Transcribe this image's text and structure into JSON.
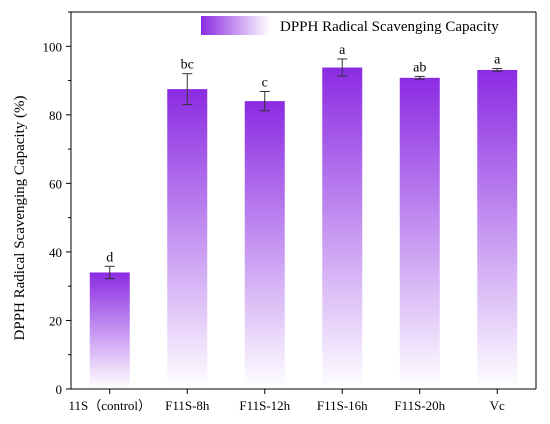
{
  "chart_data": {
    "type": "bar",
    "title": "",
    "xlabel": "",
    "ylabel": "DPPH Radical Scavenging Capacity (%)",
    "ylim": [
      0,
      110
    ],
    "yticks": [
      0,
      20,
      40,
      60,
      80,
      100
    ],
    "categories": [
      "11S（control）",
      "F11S-8h",
      "F11S-12h",
      "F11S-16h",
      "F11S-20h",
      "Vc"
    ],
    "series": [
      {
        "name": "DPPH Radical Scavenging Capacity",
        "values": [
          34.0,
          87.5,
          84.0,
          93.8,
          90.8,
          93.1
        ],
        "errors": [
          1.8,
          4.5,
          2.8,
          2.5,
          0.4,
          0.4
        ],
        "letters": [
          "d",
          "bc",
          "c",
          "a",
          "ab",
          "a"
        ]
      }
    ],
    "legend_position": "top",
    "grid": false,
    "colors": {
      "bar_top": "#8b2be2",
      "bar_bottom": "#ffffff",
      "axis": "#000000"
    }
  }
}
